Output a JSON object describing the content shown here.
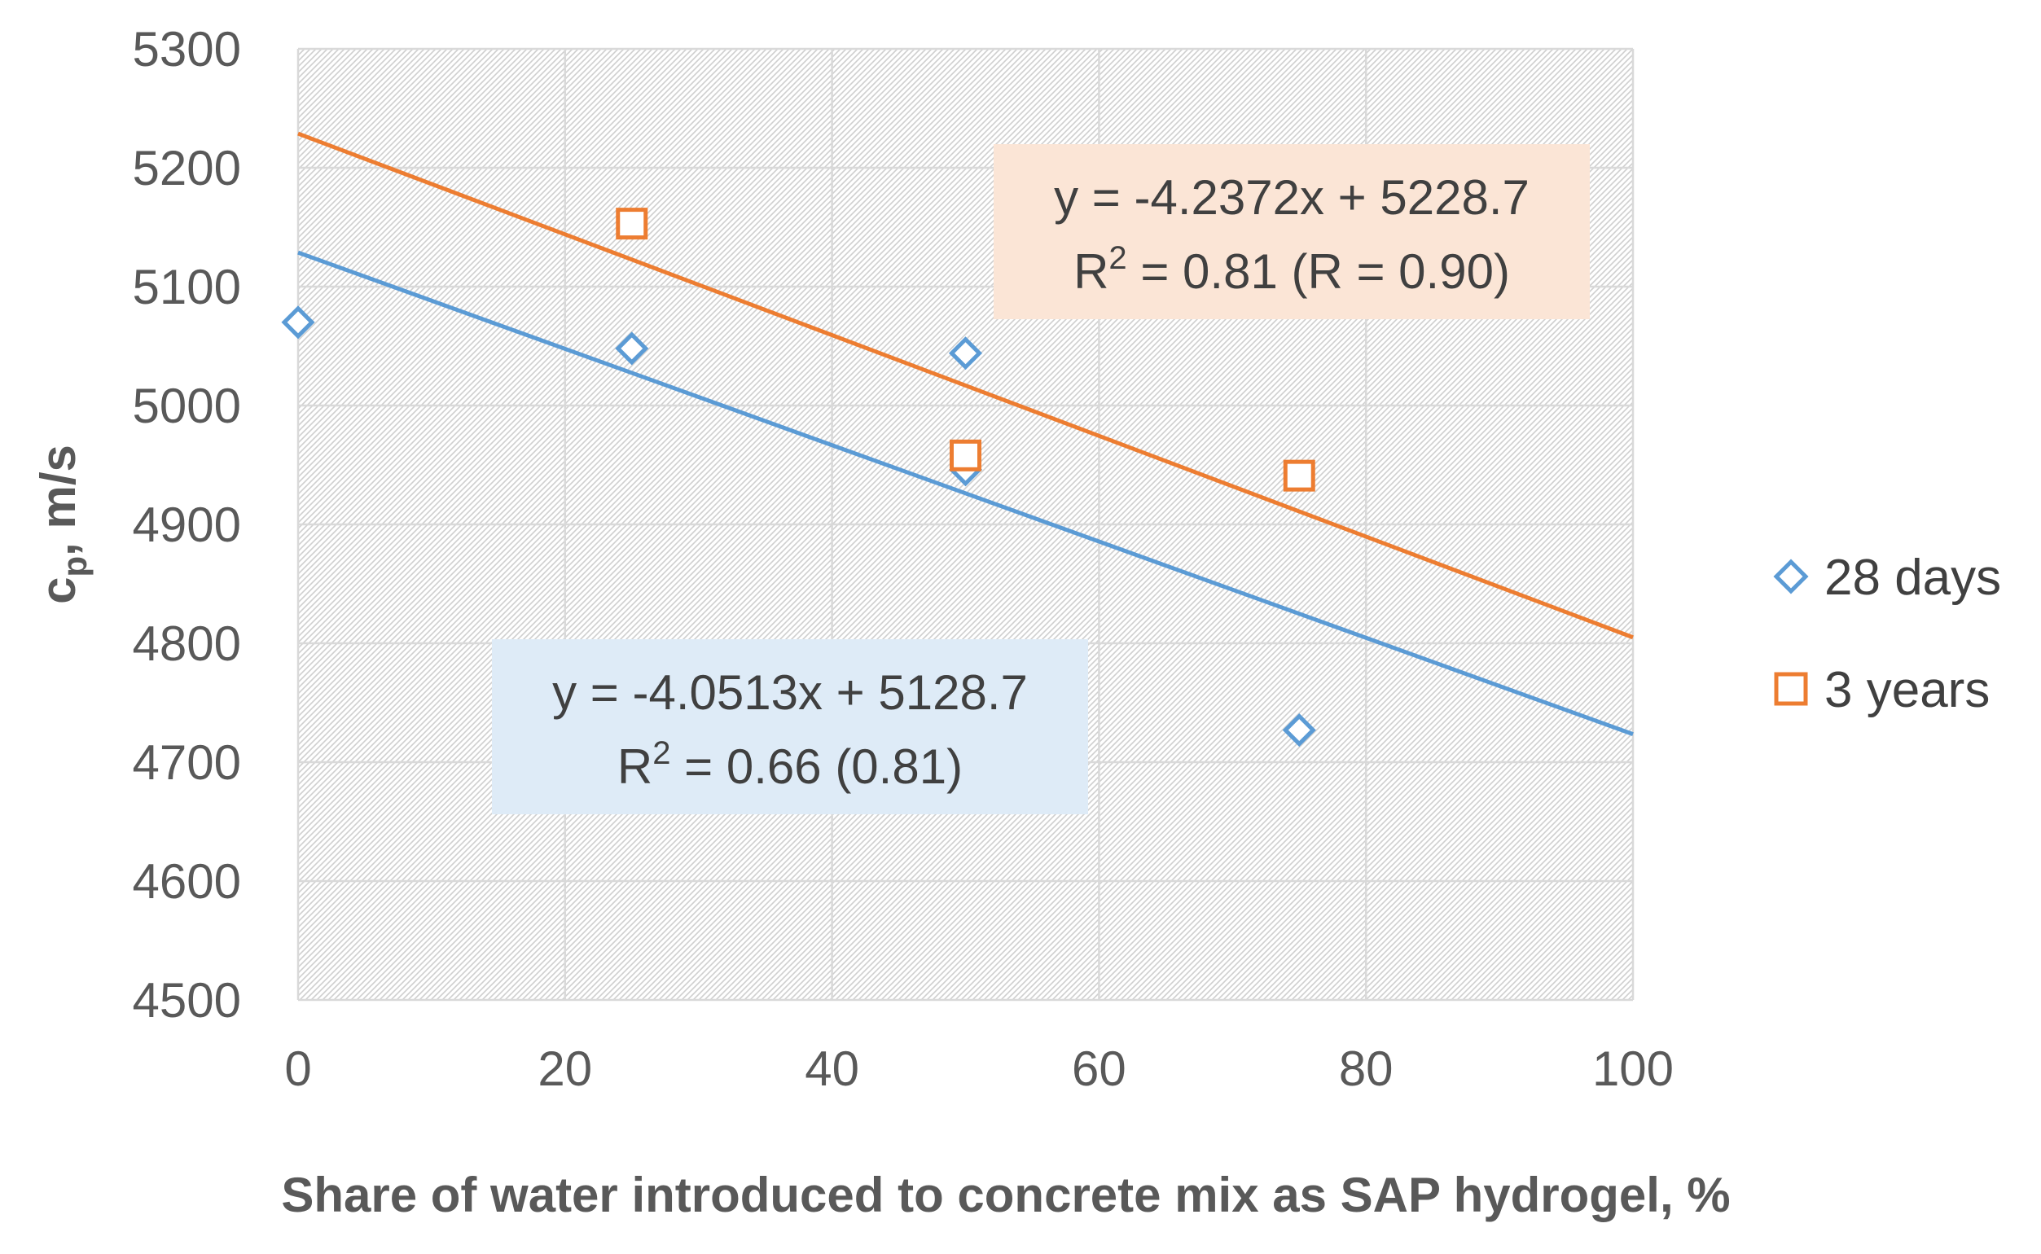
{
  "chart_data": {
    "type": "scatter",
    "title": "",
    "xlabel": "Share of water introduced to concrete mix as SAP hydrogel, %",
    "ylabel": {
      "main": "c",
      "subscript": "p",
      "rest": ", m/s"
    },
    "xlim": [
      0,
      100
    ],
    "ylim": [
      4500,
      5300
    ],
    "x_ticks": [
      0,
      20,
      40,
      60,
      80,
      100
    ],
    "y_ticks": [
      4500,
      4600,
      4700,
      4800,
      4900,
      5000,
      5100,
      5200,
      5300
    ],
    "grid": true,
    "plot_background": "hatched light gray",
    "legend_position": "right",
    "series": [
      {
        "name": "28 days",
        "marker": "diamond",
        "color": "#5B9BD5",
        "points": [
          {
            "x": 0,
            "y": 5070
          },
          {
            "x": 25,
            "y": 5048
          },
          {
            "x": 50,
            "y": 5044
          },
          {
            "x": 50,
            "y": 4946
          },
          {
            "x": 75,
            "y": 4727
          }
        ],
        "trendline": {
          "type": "linear",
          "slope": -4.0513,
          "intercept": 5128.7,
          "x_range": [
            0,
            100
          ]
        }
      },
      {
        "name": "3 years",
        "marker": "square",
        "color": "#ED7D31",
        "points": [
          {
            "x": 25,
            "y": 5153
          },
          {
            "x": 50,
            "y": 4958
          },
          {
            "x": 75,
            "y": 4941
          }
        ],
        "trendline": {
          "type": "linear",
          "slope": -4.2372,
          "intercept": 5228.7,
          "x_range": [
            0,
            100
          ]
        }
      }
    ],
    "annotations": [
      {
        "series": "3 years",
        "line1": "y = -4.2372x + 5228.7",
        "line2_prefix": "R",
        "line2_sup": "2",
        "line2_rest": " = 0.81 (R = 0.90)",
        "background": "#FBE5D6"
      },
      {
        "series": "28 days",
        "line1": "y = -4.0513x + 5128.7",
        "line2_prefix": "R",
        "line2_sup": "2",
        "line2_rest": " = 0.66 (0.81)",
        "background": "#DEEBF7"
      }
    ]
  }
}
